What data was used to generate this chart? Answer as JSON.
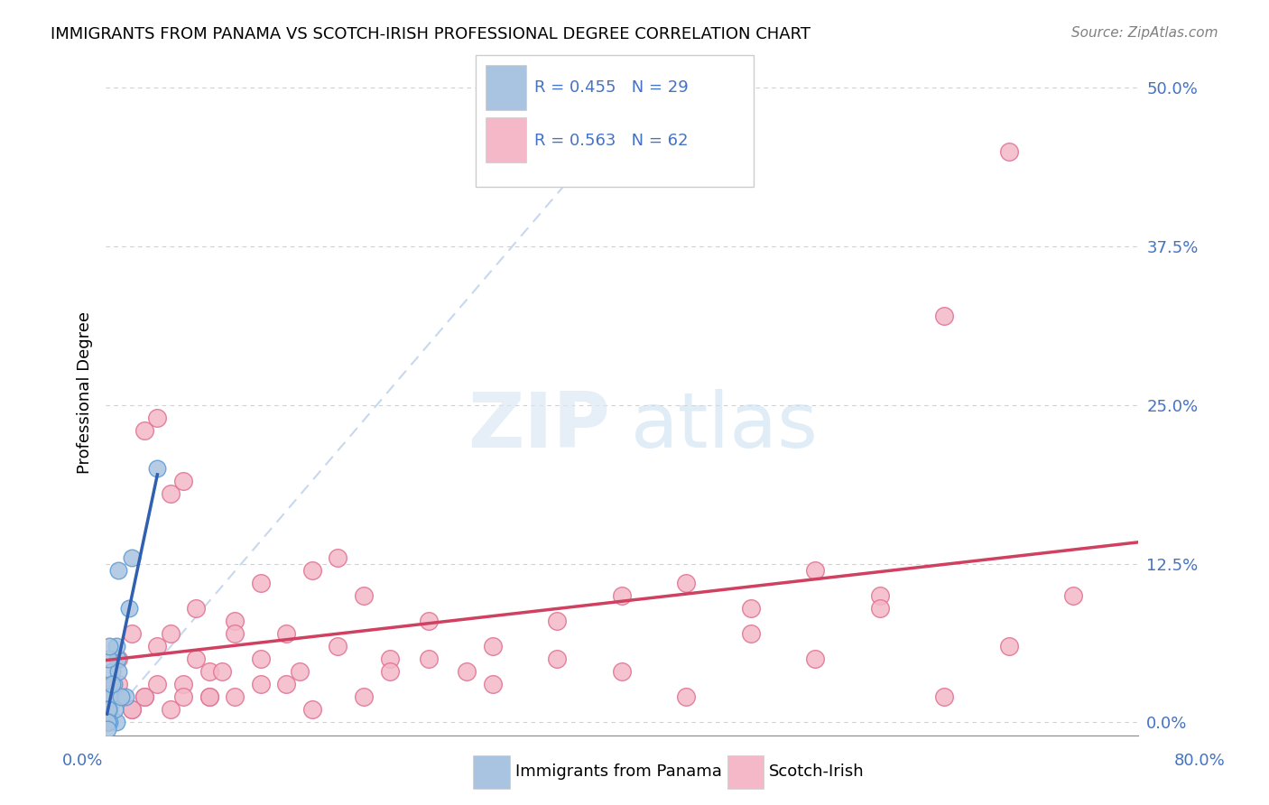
{
  "title": "IMMIGRANTS FROM PANAMA VS SCOTCH-IRISH PROFESSIONAL DEGREE CORRELATION CHART",
  "source": "Source: ZipAtlas.com",
  "ylabel": "Professional Degree",
  "ytick_values": [
    0.0,
    0.125,
    0.25,
    0.375,
    0.5
  ],
  "xlim": [
    0.0,
    0.8
  ],
  "ylim": [
    -0.01,
    0.53
  ],
  "legend_panama_label": "Immigrants from Panama",
  "legend_scotch_label": "Scotch-Irish",
  "panama_color": "#a8c4e0",
  "panama_edge_color": "#5b9bd5",
  "scotch_color": "#f4b8c8",
  "scotch_edge_color": "#e07090",
  "trendline_panama_color": "#3060b0",
  "trendline_scotch_color": "#d04060",
  "panama_x": [
    0.02,
    0.04,
    0.005,
    0.01,
    0.008,
    0.003,
    0.001,
    0.002,
    0.005,
    0.006,
    0.007,
    0.009,
    0.001,
    0.003,
    0.001,
    0.001,
    0.008,
    0.01,
    0.015,
    0.018,
    0.012,
    0.005,
    0.003,
    0.002,
    0.001,
    0.002,
    0.001,
    0.001,
    0.003
  ],
  "panama_y": [
    0.13,
    0.2,
    0.04,
    0.12,
    0.0,
    0.01,
    0.0,
    0.01,
    0.02,
    0.03,
    0.01,
    0.05,
    0.01,
    0.02,
    0.0,
    0.01,
    0.06,
    0.04,
    0.02,
    0.09,
    0.02,
    0.03,
    0.0,
    0.01,
    0.0,
    0.05,
    0.0,
    -0.005,
    0.06
  ],
  "scotch_x": [
    0.01,
    0.02,
    0.03,
    0.04,
    0.05,
    0.06,
    0.07,
    0.08,
    0.1,
    0.12,
    0.14,
    0.16,
    0.18,
    0.2,
    0.22,
    0.25,
    0.28,
    0.3,
    0.35,
    0.4,
    0.45,
    0.5,
    0.55,
    0.6,
    0.65,
    0.7,
    0.75,
    0.01,
    0.02,
    0.03,
    0.04,
    0.05,
    0.06,
    0.07,
    0.08,
    0.09,
    0.1,
    0.12,
    0.14,
    0.16,
    0.18,
    0.2,
    0.22,
    0.25,
    0.3,
    0.35,
    0.4,
    0.45,
    0.5,
    0.55,
    0.6,
    0.65,
    0.7,
    0.02,
    0.03,
    0.04,
    0.05,
    0.06,
    0.08,
    0.1,
    0.12,
    0.15
  ],
  "scotch_y": [
    0.05,
    0.07,
    0.23,
    0.24,
    0.18,
    0.19,
    0.09,
    0.04,
    0.08,
    0.11,
    0.07,
    0.12,
    0.13,
    0.1,
    0.05,
    0.05,
    0.04,
    0.06,
    0.08,
    0.1,
    0.11,
    0.09,
    0.12,
    0.1,
    0.32,
    0.45,
    0.1,
    0.03,
    0.01,
    0.02,
    0.06,
    0.07,
    0.03,
    0.05,
    0.02,
    0.04,
    0.07,
    0.05,
    0.03,
    0.01,
    0.06,
    0.02,
    0.04,
    0.08,
    0.03,
    0.05,
    0.04,
    0.02,
    0.07,
    0.05,
    0.09,
    0.02,
    0.06,
    0.01,
    0.02,
    0.03,
    0.01,
    0.02,
    0.02,
    0.02,
    0.03,
    0.04
  ]
}
